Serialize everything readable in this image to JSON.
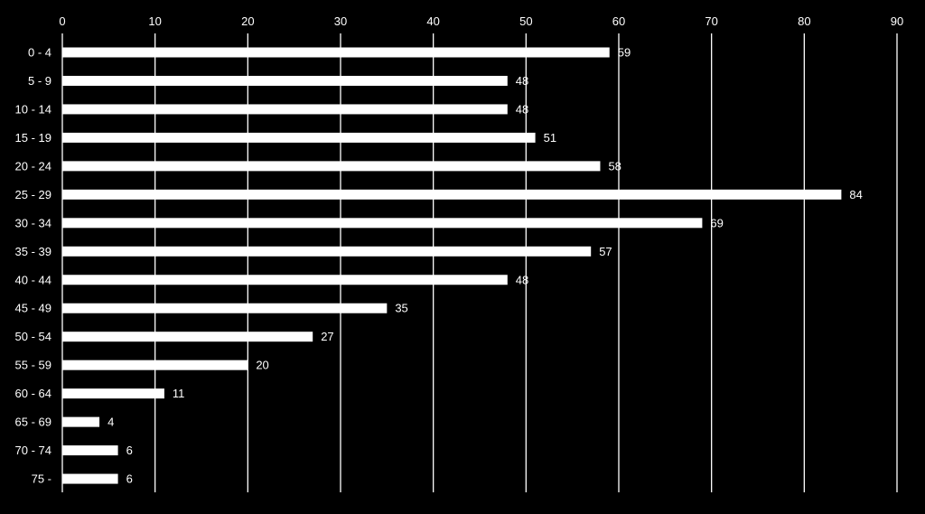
{
  "chart_data": {
    "type": "bar",
    "orientation": "horizontal",
    "title": "",
    "xlabel": "",
    "ylabel": "",
    "categories": [
      "0 - 4",
      "5 - 9",
      "10 - 14",
      "15 - 19",
      "20 - 24",
      "25 - 29",
      "30 - 34",
      "35 - 39",
      "40 - 44",
      "45 - 49",
      "50 - 54",
      "55 - 59",
      "60 - 64",
      "65 - 69",
      "70 - 74",
      "75 -"
    ],
    "values": [
      59,
      48,
      48,
      51,
      58,
      84,
      69,
      57,
      48,
      35,
      27,
      20,
      11,
      4,
      6,
      6
    ],
    "data_labels": [
      "59",
      "48",
      "48",
      "51",
      "58",
      "84",
      "69",
      "57",
      "48",
      "35",
      "27",
      "20",
      "11",
      "4",
      "6",
      "6"
    ],
    "xlim": [
      0,
      90
    ],
    "x_ticks": [
      0,
      10,
      20,
      30,
      40,
      50,
      60,
      70,
      80,
      90
    ],
    "x_tick_labels": [
      "0",
      "10",
      "20",
      "30",
      "40",
      "50",
      "60",
      "70",
      "80",
      "90"
    ],
    "x_axis_position": "top",
    "grid": true,
    "legend": "none",
    "colors": {
      "background": "#000000",
      "bar": "#ffffff",
      "grid": "#ffffff",
      "text": "#ffffff"
    }
  }
}
